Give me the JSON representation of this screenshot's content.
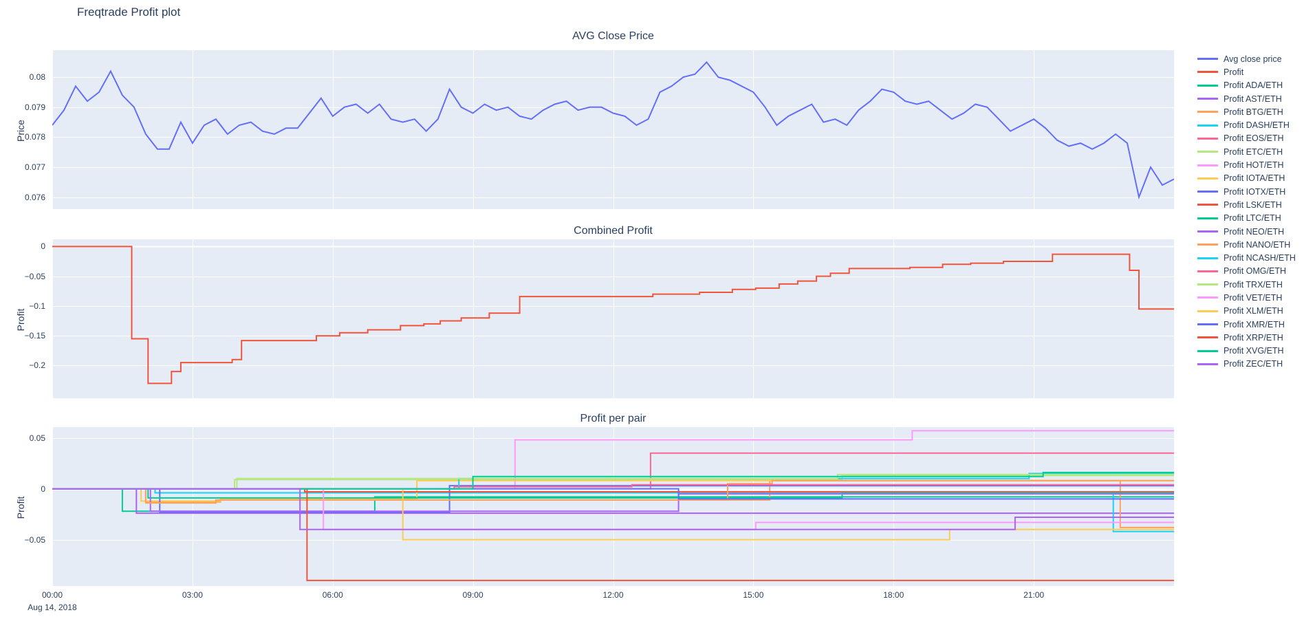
{
  "page": {
    "title": "Freqtrade Profit plot"
  },
  "colors": {
    "page_bg": "#ffffff",
    "plot_bg": "#E5ECF6",
    "grid": "#ffffff",
    "text": "#2a3f5f"
  },
  "xaxis": {
    "range": [
      0,
      24
    ],
    "ticks": [
      {
        "v": 0,
        "label": "00:00"
      },
      {
        "v": 3,
        "label": "03:00"
      },
      {
        "v": 6,
        "label": "06:00"
      },
      {
        "v": 9,
        "label": "09:00"
      },
      {
        "v": 12,
        "label": "12:00"
      },
      {
        "v": 15,
        "label": "15:00"
      },
      {
        "v": 18,
        "label": "18:00"
      },
      {
        "v": 21,
        "label": "21:00"
      }
    ],
    "date_label": "Aug 14, 2018"
  },
  "legend": {
    "items": [
      {
        "label": "Avg close price",
        "color": "#636efa"
      },
      {
        "label": "Profit",
        "color": "#EF553B"
      },
      {
        "label": "Profit ADA/ETH",
        "color": "#00cc96"
      },
      {
        "label": "Profit AST/ETH",
        "color": "#ab63fa"
      },
      {
        "label": "Profit BTG/ETH",
        "color": "#FFA15A"
      },
      {
        "label": "Profit DASH/ETH",
        "color": "#19d3f3"
      },
      {
        "label": "Profit EOS/ETH",
        "color": "#FF6692"
      },
      {
        "label": "Profit ETC/ETH",
        "color": "#B6E880"
      },
      {
        "label": "Profit HOT/ETH",
        "color": "#FF97FF"
      },
      {
        "label": "Profit IOTA/ETH",
        "color": "#FECB52"
      },
      {
        "label": "Profit IOTX/ETH",
        "color": "#636efa"
      },
      {
        "label": "Profit LSK/ETH",
        "color": "#EF553B"
      },
      {
        "label": "Profit LTC/ETH",
        "color": "#00cc96"
      },
      {
        "label": "Profit NEO/ETH",
        "color": "#ab63fa"
      },
      {
        "label": "Profit NANO/ETH",
        "color": "#FFA15A"
      },
      {
        "label": "Profit NCASH/ETH",
        "color": "#19d3f3"
      },
      {
        "label": "Profit OMG/ETH",
        "color": "#FF6692"
      },
      {
        "label": "Profit TRX/ETH",
        "color": "#B6E880"
      },
      {
        "label": "Profit VET/ETH",
        "color": "#FF97FF"
      },
      {
        "label": "Profit XLM/ETH",
        "color": "#FECB52"
      },
      {
        "label": "Profit XMR/ETH",
        "color": "#636efa"
      },
      {
        "label": "Profit XRP/ETH",
        "color": "#EF553B"
      },
      {
        "label": "Profit XVG/ETH",
        "color": "#00cc96"
      },
      {
        "label": "Profit ZEC/ETH",
        "color": "#ab63fa"
      }
    ]
  },
  "chart_data": [
    {
      "type": "line",
      "title": "AVG Close Price",
      "ylabel": "Price",
      "ylim": [
        0.0756,
        0.0809
      ],
      "yticks": [
        {
          "v": 0.076,
          "label": "0.076"
        },
        {
          "v": 0.077,
          "label": "0.077"
        },
        {
          "v": 0.078,
          "label": "0.078"
        },
        {
          "v": 0.079,
          "label": "0.079"
        },
        {
          "v": 0.08,
          "label": "0.08"
        }
      ],
      "series": [
        {
          "name": "Avg close price",
          "color": "#636efa",
          "mode": "linear",
          "x_start": 0,
          "x_step": 0.25,
          "y": [
            0.0784,
            0.0789,
            0.0797,
            0.0792,
            0.0795,
            0.0802,
            0.0794,
            0.079,
            0.0781,
            0.0776,
            0.0776,
            0.0785,
            0.0778,
            0.0784,
            0.0786,
            0.0781,
            0.0784,
            0.0785,
            0.0782,
            0.0781,
            0.0783,
            0.0783,
            0.0788,
            0.0793,
            0.0787,
            0.079,
            0.0791,
            0.0788,
            0.0791,
            0.0786,
            0.0785,
            0.0786,
            0.0782,
            0.0786,
            0.0796,
            0.079,
            0.0788,
            0.0791,
            0.0789,
            0.079,
            0.0787,
            0.0786,
            0.0789,
            0.0791,
            0.0792,
            0.0789,
            0.079,
            0.079,
            0.0788,
            0.0787,
            0.0784,
            0.0786,
            0.0795,
            0.0797,
            0.08,
            0.0801,
            0.0805,
            0.08,
            0.0799,
            0.0797,
            0.0795,
            0.079,
            0.0784,
            0.0787,
            0.0789,
            0.0791,
            0.0785,
            0.0786,
            0.0784,
            0.0789,
            0.0792,
            0.0796,
            0.0795,
            0.0792,
            0.0791,
            0.0792,
            0.0789,
            0.0786,
            0.0788,
            0.0791,
            0.079,
            0.0786,
            0.0782,
            0.0784,
            0.0786,
            0.0783,
            0.0779,
            0.0777,
            0.0778,
            0.0776,
            0.0778,
            0.0781,
            0.0778,
            0.076,
            0.077,
            0.0764,
            0.0766
          ]
        }
      ]
    },
    {
      "type": "line",
      "title": "Combined Profit",
      "ylabel": "Profit",
      "ylim": [
        -0.255,
        0.012
      ],
      "yticks": [
        {
          "v": 0,
          "label": "0"
        },
        {
          "v": -0.05,
          "label": "−0.05"
        },
        {
          "v": -0.1,
          "label": "−0.1"
        },
        {
          "v": -0.15,
          "label": "−0.15"
        },
        {
          "v": -0.2,
          "label": "−0.2"
        }
      ],
      "series": [
        {
          "name": "Profit",
          "color": "#EF553B",
          "mode": "step",
          "points": [
            [
              0,
              0
            ],
            [
              1.7,
              -0.155
            ],
            [
              2.05,
              -0.23
            ],
            [
              2.55,
              -0.21
            ],
            [
              2.75,
              -0.195
            ],
            [
              3.85,
              -0.19
            ],
            [
              4.05,
              -0.158
            ],
            [
              5.65,
              -0.15
            ],
            [
              6.15,
              -0.145
            ],
            [
              6.75,
              -0.14
            ],
            [
              7.45,
              -0.133
            ],
            [
              7.95,
              -0.13
            ],
            [
              8.3,
              -0.125
            ],
            [
              8.75,
              -0.12
            ],
            [
              9.35,
              -0.112
            ],
            [
              10.0,
              -0.084
            ],
            [
              12.85,
              -0.08
            ],
            [
              13.85,
              -0.077
            ],
            [
              14.55,
              -0.072
            ],
            [
              15.05,
              -0.07
            ],
            [
              15.55,
              -0.063
            ],
            [
              15.95,
              -0.058
            ],
            [
              16.35,
              -0.05
            ],
            [
              16.65,
              -0.045
            ],
            [
              17.05,
              -0.037
            ],
            [
              18.35,
              -0.035
            ],
            [
              19.05,
              -0.03
            ],
            [
              19.65,
              -0.028
            ],
            [
              20.35,
              -0.025
            ],
            [
              21.4,
              -0.013
            ],
            [
              23.05,
              -0.04
            ],
            [
              23.25,
              -0.105
            ]
          ]
        }
      ]
    },
    {
      "type": "line",
      "title": "Profit per pair",
      "ylabel": "Profit",
      "ylim": [
        -0.0955,
        0.0605
      ],
      "yticks": [
        {
          "v": 0.05,
          "label": "0.05"
        },
        {
          "v": 0,
          "label": "0"
        },
        {
          "v": -0.05,
          "label": "−0.05"
        }
      ],
      "series": [
        {
          "name": "Profit ADA/ETH",
          "color": "#00cc96",
          "mode": "step",
          "points": [
            [
              0,
              0
            ],
            [
              1.5,
              -0.022
            ],
            [
              6.9,
              -0.008
            ]
          ]
        },
        {
          "name": "Profit AST/ETH",
          "color": "#ab63fa",
          "mode": "step",
          "points": [
            [
              0,
              0
            ],
            [
              1.8,
              -0.024
            ]
          ]
        },
        {
          "name": "Profit BTG/ETH",
          "color": "#FFA15A",
          "mode": "step",
          "points": [
            [
              0,
              0
            ],
            [
              2.0,
              -0.013
            ],
            [
              3.6,
              -0.011
            ],
            [
              15.35,
              0.008
            ],
            [
              22.85,
              -0.038
            ]
          ]
        },
        {
          "name": "Profit DASH/ETH",
          "color": "#19d3f3",
          "mode": "step",
          "points": [
            [
              0,
              0
            ],
            [
              2.2,
              -0.004
            ],
            [
              22.7,
              -0.042
            ]
          ]
        },
        {
          "name": "Profit EOS/ETH",
          "color": "#FF6692",
          "mode": "step",
          "points": [
            [
              0,
              0
            ],
            [
              12.8,
              0.035
            ]
          ]
        },
        {
          "name": "Profit ETC/ETH",
          "color": "#B6E880",
          "mode": "step",
          "points": [
            [
              0,
              0
            ],
            [
              3.9,
              0.009
            ],
            [
              16.9,
              0.013
            ]
          ]
        },
        {
          "name": "Profit HOT/ETH",
          "color": "#FF97FF",
          "mode": "step",
          "points": [
            [
              0,
              0
            ],
            [
              9.9,
              0.048
            ],
            [
              18.4,
              0.057
            ]
          ]
        },
        {
          "name": "Profit IOTA/ETH",
          "color": "#FECB52",
          "mode": "step",
          "points": [
            [
              0,
              0
            ],
            [
              1.9,
              -0.012
            ],
            [
              3.6,
              -0.01
            ],
            [
              7.8,
              0.008
            ]
          ]
        },
        {
          "name": "Profit IOTX/ETH",
          "color": "#636efa",
          "mode": "step",
          "points": [
            [
              0,
              0
            ],
            [
              2.3,
              -0.023
            ],
            [
              8.5,
              0.003
            ]
          ]
        },
        {
          "name": "Profit LSK/ETH",
          "color": "#EF553B",
          "mode": "step",
          "points": [
            [
              0,
              0
            ],
            [
              5.4,
              -0.003
            ]
          ]
        },
        {
          "name": "Profit LTC/ETH",
          "color": "#00cc96",
          "mode": "step",
          "points": [
            [
              0,
              0
            ],
            [
              2.05,
              -0.009
            ],
            [
              16.9,
              -0.004
            ]
          ]
        },
        {
          "name": "Profit NEO/ETH",
          "color": "#ab63fa",
          "mode": "step",
          "points": [
            [
              0,
              0
            ],
            [
              2.1,
              -0.022
            ],
            [
              13.4,
              -0.005
            ]
          ]
        },
        {
          "name": "Profit NANO/ETH",
          "color": "#FFA15A",
          "mode": "step",
          "points": [
            [
              0,
              0
            ],
            [
              2.0,
              -0.014
            ],
            [
              3.5,
              -0.011
            ],
            [
              14.45,
              0.005
            ],
            [
              15.4,
              0.008
            ]
          ]
        },
        {
          "name": "Profit NCASH/ETH",
          "color": "#19d3f3",
          "mode": "step",
          "points": [
            [
              0,
              0
            ],
            [
              8.7,
              0.01
            ],
            [
              20.9,
              0.015
            ]
          ]
        },
        {
          "name": "Profit OMG/ETH",
          "color": "#FF6692",
          "mode": "step",
          "points": [
            [
              0,
              0
            ],
            [
              8.6,
              0.002
            ],
            [
              12.4,
              0.004
            ]
          ]
        },
        {
          "name": "Profit TRX/ETH",
          "color": "#B6E880",
          "mode": "step",
          "points": [
            [
              0,
              0
            ],
            [
              3.95,
              0.01
            ],
            [
              16.8,
              0.014
            ]
          ]
        },
        {
          "name": "Profit VET/ETH",
          "color": "#FF97FF",
          "mode": "step",
          "points": [
            [
              0,
              0
            ],
            [
              5.8,
              -0.04
            ],
            [
              15.05,
              -0.033
            ]
          ]
        },
        {
          "name": "Profit XLM/ETH",
          "color": "#FECB52",
          "mode": "step",
          "points": [
            [
              0,
              0
            ],
            [
              7.5,
              -0.05
            ],
            [
              19.2,
              -0.04
            ]
          ]
        },
        {
          "name": "Profit XMR/ETH",
          "color": "#636efa",
          "mode": "step",
          "points": [
            [
              0,
              0
            ],
            [
              13.4,
              -0.01
            ]
          ]
        },
        {
          "name": "Profit XRP/ETH",
          "color": "#EF553B",
          "mode": "step",
          "points": [
            [
              0,
              0
            ],
            [
              5.45,
              -0.09
            ]
          ]
        },
        {
          "name": "Profit XVG/ETH",
          "color": "#00cc96",
          "mode": "step",
          "points": [
            [
              0,
              0
            ],
            [
              9.0,
              0.012
            ],
            [
              21.2,
              0.016
            ]
          ]
        },
        {
          "name": "Profit ZEC/ETH",
          "color": "#ab63fa",
          "mode": "step",
          "points": [
            [
              0,
              0
            ],
            [
              5.3,
              -0.04
            ],
            [
              20.6,
              -0.028
            ]
          ]
        }
      ]
    }
  ]
}
